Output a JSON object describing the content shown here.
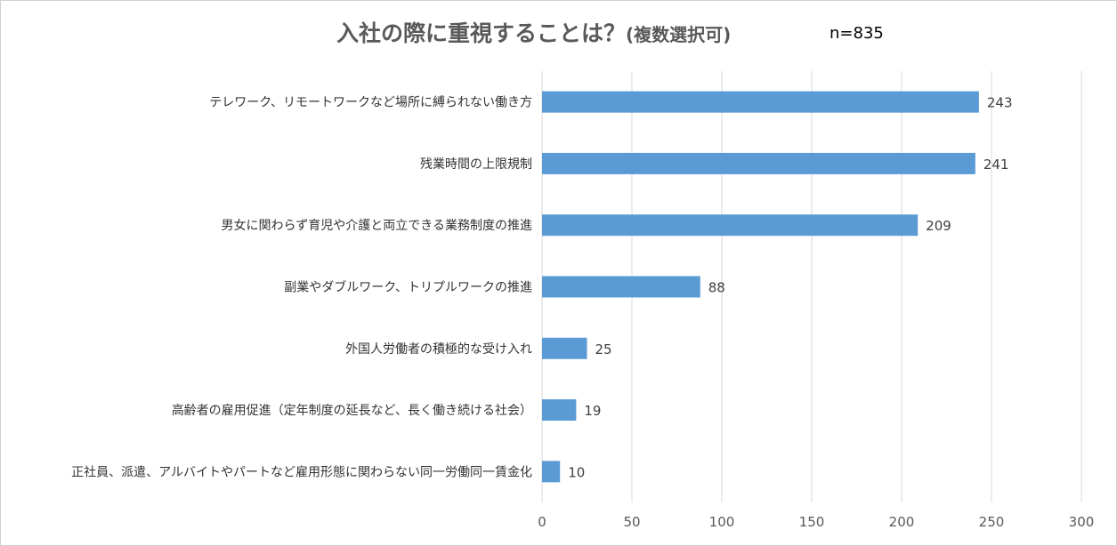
{
  "chart_data": {
    "type": "bar",
    "orientation": "horizontal",
    "title": "入社の際に重視することは？",
    "title_suffix": "(複数選択可)",
    "sample_size": "n=835",
    "categories": [
      "テレワーク、リモートワークなど場所に縛られない働き方",
      "残業時間の上限規制",
      "男女に関わらず育児や介護と両立できる業務制度の推進",
      "副業やダブルワーク、トリプルワークの推進",
      "外国人労働者の積極的な受け入れ",
      "高齢者の雇用促進（定年制度の延長など、長く働き続ける社会）",
      "正社員、派遣、アルバイトやパートなど雇用形態に関わらない同一労働同一賃金化"
    ],
    "values": [
      243,
      241,
      209,
      88,
      25,
      19,
      10
    ],
    "xlim": [
      0,
      300
    ],
    "xticks": [
      0,
      50,
      100,
      150,
      200,
      250,
      300
    ],
    "grid": true,
    "bar_color": "#5b9bd5",
    "grid_color": "#d9d9d9",
    "xlabel": "",
    "ylabel": ""
  }
}
